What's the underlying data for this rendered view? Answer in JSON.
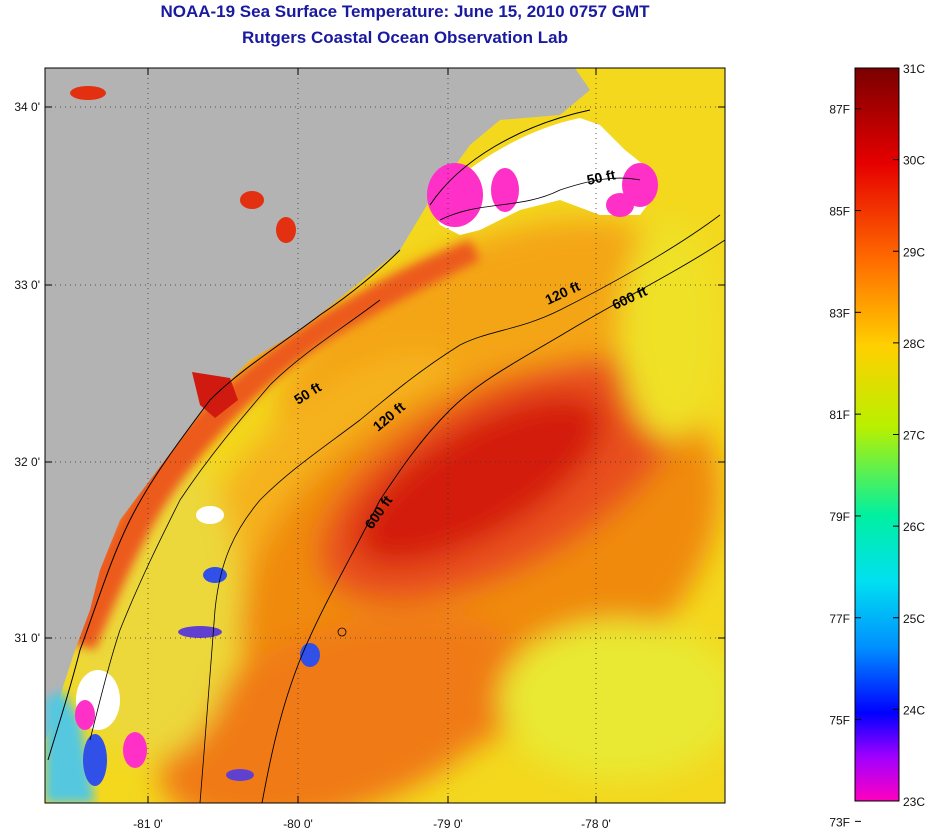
{
  "title": "NOAA-19 Sea Surface Temperature:  June 15, 2010 0757 GMT",
  "subtitle": "Rutgers Coastal Ocean Observation Lab",
  "map": {
    "x_ticks": [
      "-81 0'",
      "-80 0'",
      "-79 0'",
      "-78 0'"
    ],
    "y_ticks": [
      "34 0'",
      "33 0'",
      "32 0'",
      "31 0'"
    ],
    "grid": true,
    "contour_labels": [
      "50 ft",
      "120 ft",
      "600 ft",
      "50 ft",
      "120 ft",
      "600 ft"
    ]
  },
  "colorbar": {
    "fahrenheit": [
      "87F",
      "85F",
      "83F",
      "81F",
      "79F",
      "77F",
      "75F",
      "73F"
    ],
    "celsius": [
      "31C",
      "30C",
      "29C",
      "28C",
      "27C",
      "26C",
      "25C",
      "24C",
      "23C"
    ]
  },
  "colors": {
    "land": "#b3b3b3",
    "title": "#1a1aa0",
    "warm_core": "#d41a0a",
    "sst_mid": "#f08a10",
    "sst_cool": "#f0e020"
  }
}
